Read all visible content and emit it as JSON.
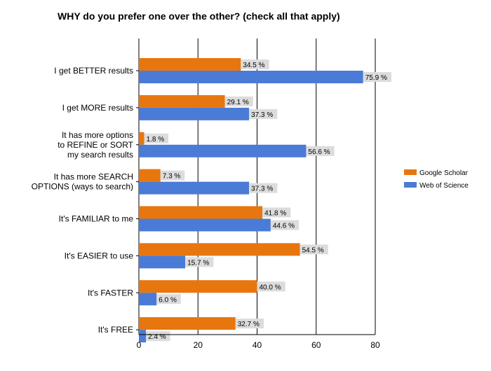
{
  "chart_data": {
    "type": "bar",
    "orientation": "horizontal",
    "title": "WHY do you prefer one over the other? (check all that apply)",
    "categories": [
      "I get BETTER results",
      "I get MORE results",
      "It has more options\nto REFINE or SORT\nmy search results",
      "It has more SEARCH\nOPTIONS (ways to search)",
      "It's FAMILIAR to me",
      "It's EASIER to use",
      "It's FASTER",
      "It's FREE"
    ],
    "series": [
      {
        "name": "Google Scholar",
        "color": "#e8760f",
        "values": [
          34.5,
          29.1,
          1.8,
          7.3,
          41.8,
          54.5,
          40.0,
          32.7
        ],
        "labels": [
          "34.5 %",
          "29.1 %",
          "1.8 %",
          "7.3 %",
          "41.8 %",
          "54.5 %",
          "40.0 %",
          "32.7 %"
        ]
      },
      {
        "name": "Web of Science",
        "color": "#4a7bd6",
        "values": [
          75.9,
          37.3,
          56.6,
          37.3,
          44.6,
          15.7,
          6.0,
          2.4
        ],
        "labels": [
          "75.9 %",
          "37.3 %",
          "56.6 %",
          "37.3 %",
          "44.6 %",
          "15.7 %",
          "6.0 %",
          "2.4 %"
        ]
      }
    ],
    "xlim": [
      0,
      80
    ],
    "xticks": [
      0,
      20,
      40,
      60,
      80
    ],
    "grid": true,
    "legend_position": "right"
  }
}
